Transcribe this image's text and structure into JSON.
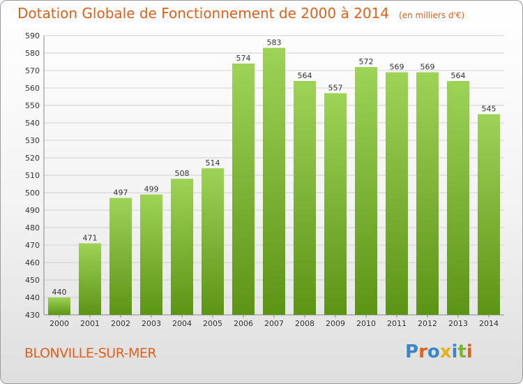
{
  "title": {
    "main": "Dotation Globale de Fonctionnement de 2000 à 2014",
    "unit": "(en milliers d'€)"
  },
  "town": "BLONVILLE-SUR-MER",
  "logo": {
    "text": "Proxiti",
    "colors": [
      "#3a86c8",
      "#e0601c",
      "#3a86c8",
      "#e8b020",
      "#3a86c8",
      "#7ab829",
      "#e0601c"
    ]
  },
  "colors": {
    "bar_light": "#9dd356",
    "bar_dark": "#5c9416",
    "title": "#e0601c",
    "grid": "#d0d0d0"
  },
  "chart_data": {
    "type": "bar",
    "categories": [
      "2000",
      "2001",
      "2002",
      "2003",
      "2004",
      "2005",
      "2006",
      "2007",
      "2008",
      "2009",
      "2010",
      "2011",
      "2012",
      "2013",
      "2014"
    ],
    "values": [
      440,
      471,
      497,
      499,
      508,
      514,
      574,
      583,
      564,
      557,
      572,
      569,
      569,
      564,
      545
    ],
    "ylim": [
      430,
      590
    ],
    "yticks": [
      430,
      440,
      450,
      460,
      470,
      480,
      490,
      500,
      510,
      520,
      530,
      540,
      550,
      560,
      570,
      580,
      590
    ],
    "grid": true,
    "data_labels": true
  }
}
